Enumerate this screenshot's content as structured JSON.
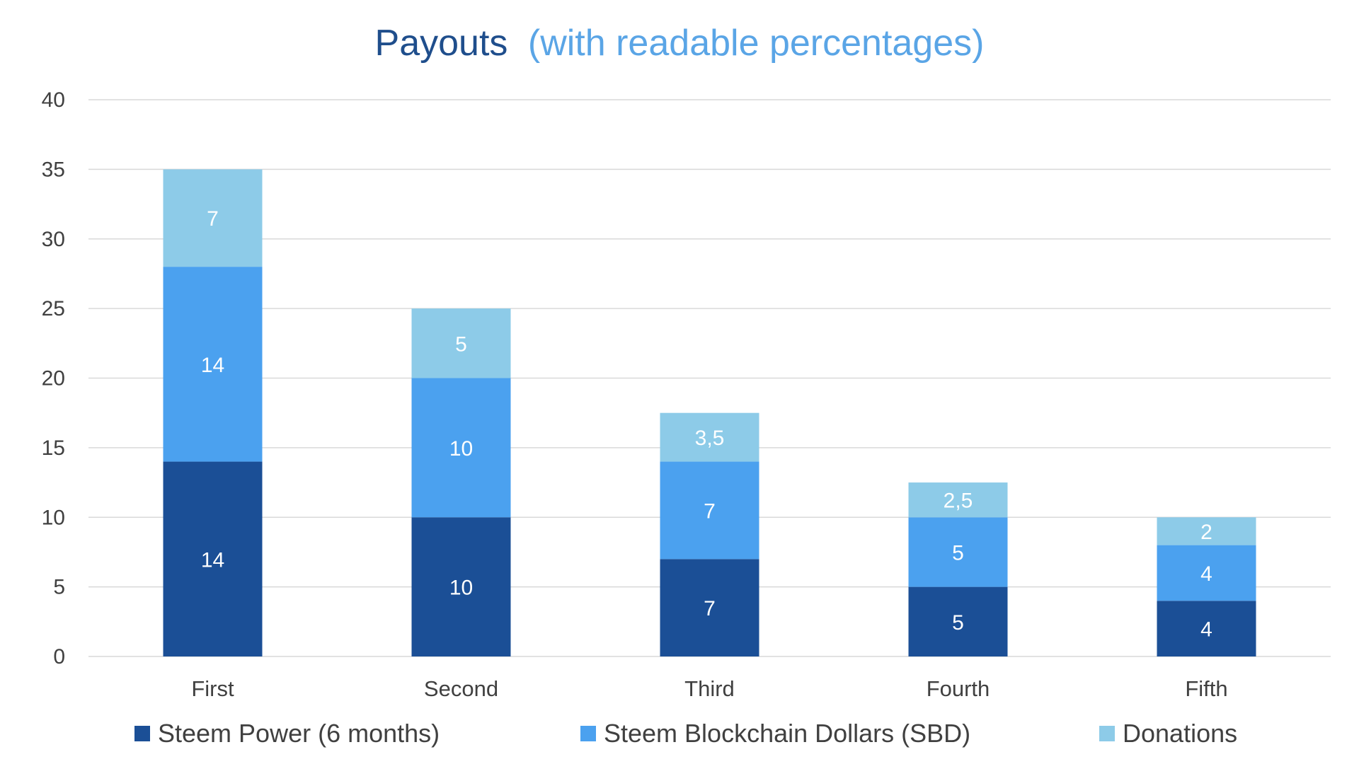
{
  "chart_data": {
    "type": "bar",
    "stacked": true,
    "title": {
      "main": "Payouts",
      "sub": "(with readable percentages)"
    },
    "categories": [
      "First",
      "Second",
      "Third",
      "Fourth",
      "Fifth"
    ],
    "series": [
      {
        "name": "Steem Power (6 months)",
        "color": "#1b4f96",
        "values": [
          14,
          10,
          7,
          5,
          4
        ],
        "labels": [
          "14",
          "10",
          "7",
          "5",
          "4"
        ]
      },
      {
        "name": "Steem Blockchain Dollars (SBD)",
        "color": "#4ba1ef",
        "values": [
          14,
          10,
          7,
          5,
          4
        ],
        "labels": [
          "14",
          "10",
          "7",
          "5",
          "4"
        ]
      },
      {
        "name": "Donations",
        "color": "#8dcbe8",
        "values": [
          7,
          5,
          3.5,
          2.5,
          2
        ],
        "labels": [
          "7",
          "5",
          "3,5",
          "2,5",
          "2"
        ]
      }
    ],
    "ylim": [
      0,
      40
    ],
    "yticks": [
      0,
      5,
      10,
      15,
      20,
      25,
      30,
      35,
      40
    ],
    "ytick_labels": [
      "0",
      "5",
      "10",
      "15",
      "20",
      "25",
      "30",
      "35",
      "40"
    ],
    "grid": true,
    "legend": "bottom",
    "colors": {
      "title_main": "#1f4e8c",
      "title_sub": "#5aa5e6",
      "grid": "#d9d9d9",
      "text": "#404040",
      "data_label": "#ffffff"
    }
  }
}
